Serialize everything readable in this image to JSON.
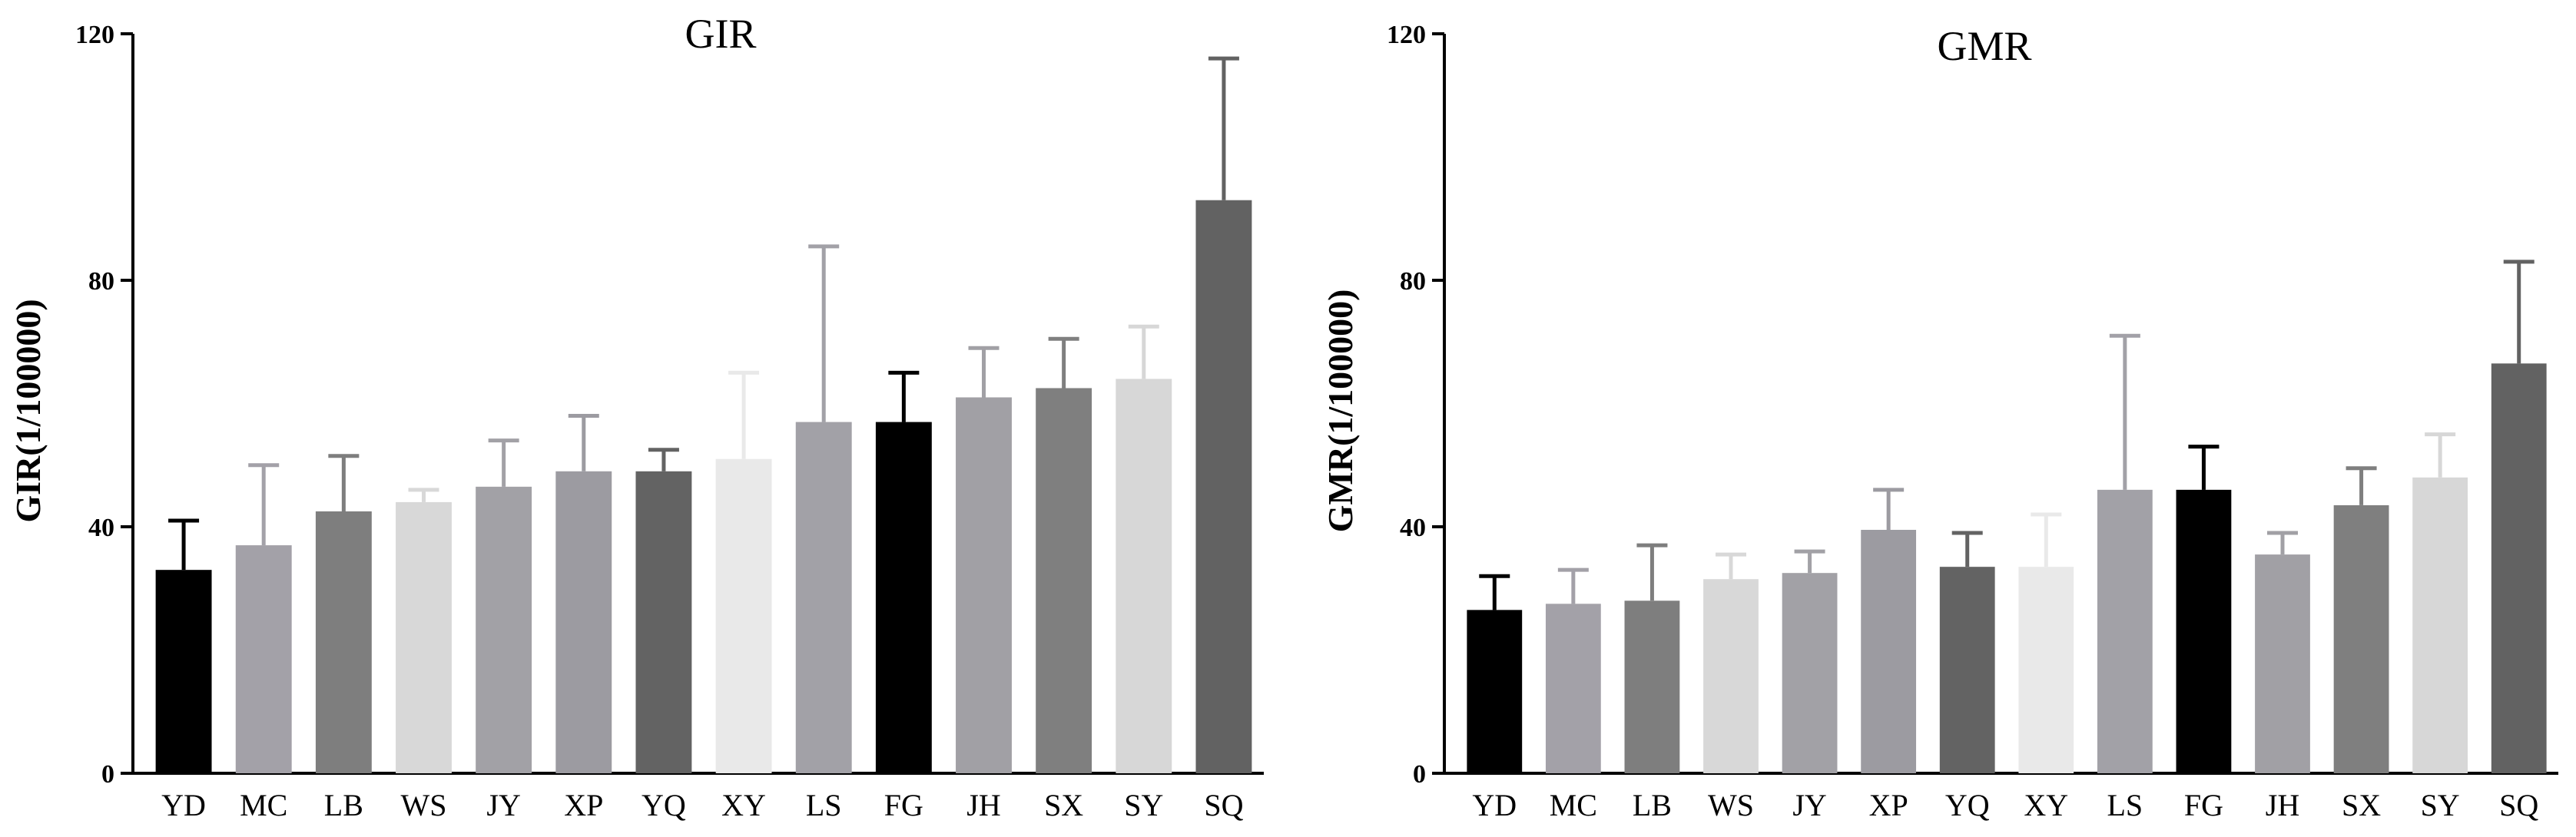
{
  "chart_data": [
    {
      "type": "bar",
      "title": "GIR",
      "xlabel": "",
      "ylabel": "GIR(1/100000)",
      "ylim": [
        0,
        120
      ],
      "yticks": [
        0,
        40,
        80,
        120
      ],
      "grid": false,
      "categories": [
        "YD",
        "MC",
        "LB",
        "WS",
        "JY",
        "XP",
        "YQ",
        "XY",
        "LS",
        "FG",
        "JH",
        "SX",
        "SY",
        "SQ"
      ],
      "values": [
        33,
        37,
        42.5,
        44,
        46.5,
        49,
        49,
        51,
        57,
        57,
        61,
        62.5,
        64,
        93
      ],
      "error_upper": [
        41,
        50,
        51.5,
        46,
        54,
        58,
        52.5,
        65,
        85.5,
        65,
        69,
        70.5,
        72.5,
        116
      ],
      "colors": [
        "#000000",
        "#a3a1a8",
        "#7e7e7e",
        "#d8d8d8",
        "#a2a1a6",
        "#9c9ba1",
        "#636363",
        "#e9e9e9",
        "#a2a1a7",
        "#000000",
        "#a1a0a5",
        "#7f7f7f",
        "#d7d7d7",
        "#626262"
      ]
    },
    {
      "type": "bar",
      "title": "GMR",
      "xlabel": "",
      "ylabel": "GMR(1/100000)",
      "ylim": [
        0,
        120
      ],
      "yticks": [
        0,
        40,
        80,
        120
      ],
      "grid": false,
      "categories": [
        "YD",
        "MC",
        "LB",
        "WS",
        "JY",
        "XP",
        "YQ",
        "XY",
        "LS",
        "FG",
        "JH",
        "SX",
        "SY",
        "SQ"
      ],
      "values": [
        26.5,
        27.5,
        28,
        31.5,
        32.5,
        39.5,
        33.5,
        33.5,
        46,
        46,
        35.5,
        43.5,
        48,
        66.5
      ],
      "error_upper": [
        32,
        33,
        37,
        35.5,
        36,
        46,
        39,
        42,
        71,
        53,
        39,
        49.5,
        55,
        83
      ],
      "colors": [
        "#000000",
        "#a3a1a8",
        "#7e7e7e",
        "#d8d8d8",
        "#a2a1a6",
        "#9c9ba1",
        "#636363",
        "#e9e9e9",
        "#a2a1a7",
        "#000000",
        "#a1a0a5",
        "#7f7f7f",
        "#d7d7d7",
        "#626262"
      ]
    }
  ]
}
